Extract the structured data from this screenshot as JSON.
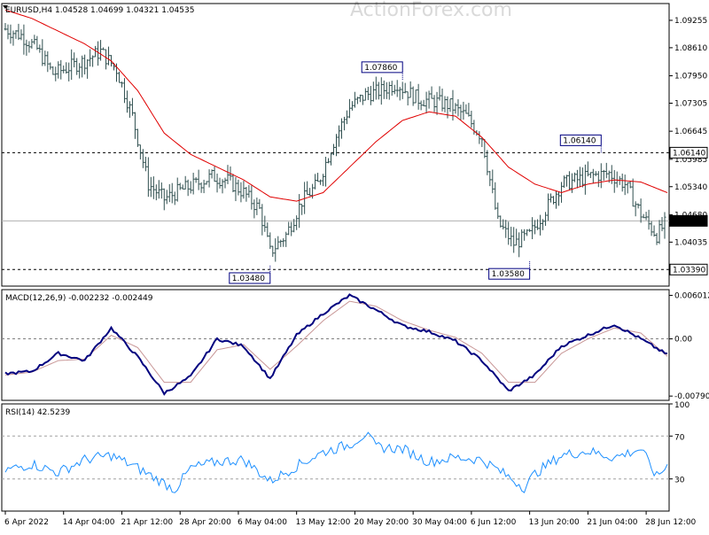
{
  "watermark": "ActionForex.com",
  "chart_data": [
    {
      "type": "bar",
      "title": "EURUSD,H4  1.04528 1.04699 1.04321 1.04535",
      "ylim": [
        1.03,
        1.0965
      ],
      "y_ticks": [
        "1.09255",
        "1.08610",
        "1.07950",
        "1.07305",
        "1.06645",
        "1.05985",
        "1.05340",
        "1.04680",
        "1.04035"
      ],
      "y_tick_values": [
        1.09255,
        1.0861,
        1.0795,
        1.07305,
        1.06645,
        1.05985,
        1.0534,
        1.0468,
        1.04035
      ],
      "x_tick_labels": [
        "6 Apr 2022",
        "14 Apr 04:00",
        "21 Apr 12:00",
        "28 Apr 20:00",
        "6 May 04:00",
        "13 May 12:00",
        "20 May 20:00",
        "30 May 04:00",
        "6 Jun 12:00",
        "13 Jun 20:00",
        "21 Jun 04:00",
        "28 Jun 12:00"
      ],
      "x_tick_index": [
        0,
        22,
        44,
        66,
        88,
        110,
        132,
        154,
        176,
        198,
        220,
        242
      ],
      "bar_count": 250,
      "horizontal_levels": [
        {
          "value": 1.0614,
          "label": "1.06140",
          "style": "dashed"
        },
        {
          "value": 1.0339,
          "label": "1.03390",
          "style": "dashed"
        },
        {
          "value": 1.04535,
          "label": "1.04535",
          "style": "solid"
        }
      ],
      "annotations": [
        {
          "label": "1.03480",
          "bar": 100,
          "value": 1.0348,
          "position": "below"
        },
        {
          "label": "1.07860",
          "bar": 150,
          "value": 1.0786,
          "position": "above"
        },
        {
          "label": "1.03580",
          "bar": 198,
          "value": 1.0358,
          "position": "below"
        },
        {
          "label": "1.06140",
          "bar": 225,
          "value": 1.0614,
          "position": "above"
        }
      ],
      "price_anchors": {
        "x": [
          0,
          6,
          12,
          18,
          24,
          30,
          36,
          42,
          48,
          54,
          60,
          66,
          72,
          78,
          84,
          90,
          96,
          100,
          106,
          112,
          118,
          124,
          130,
          136,
          142,
          148,
          150,
          156,
          162,
          168,
          174,
          180,
          186,
          192,
          198,
          204,
          210,
          216,
          222,
          228,
          234,
          240,
          246,
          250
        ],
        "close": [
          1.0905,
          1.089,
          1.0858,
          1.08,
          1.0815,
          1.083,
          1.0852,
          1.081,
          1.07,
          1.054,
          1.0505,
          1.0525,
          1.054,
          1.0558,
          1.0548,
          1.052,
          1.048,
          1.038,
          1.042,
          1.05,
          1.054,
          1.064,
          1.072,
          1.075,
          1.076,
          1.0778,
          1.0765,
          1.074,
          1.0735,
          1.0725,
          1.07,
          1.065,
          1.045,
          1.04,
          1.042,
          1.048,
          1.054,
          1.055,
          1.056,
          1.0565,
          1.054,
          1.047,
          1.042,
          1.04535
        ]
      },
      "ma": {
        "x": [
          0,
          10,
          20,
          30,
          40,
          50,
          60,
          70,
          80,
          90,
          100,
          110,
          120,
          130,
          140,
          150,
          160,
          170,
          180,
          190,
          200,
          210,
          220,
          230,
          240,
          250
        ],
        "y": [
          1.095,
          1.093,
          1.09,
          1.087,
          1.083,
          1.076,
          1.066,
          1.061,
          1.058,
          1.055,
          1.051,
          1.05,
          1.052,
          1.058,
          1.064,
          1.069,
          1.071,
          1.07,
          1.065,
          1.058,
          1.054,
          1.052,
          1.054,
          1.055,
          1.0545,
          1.052
        ]
      },
      "colors": {
        "bars": "#2f4f4f",
        "ma": "#e00000",
        "level": "#000000",
        "current": "#b0b0b0"
      }
    },
    {
      "type": "line",
      "title": "MACD(12,26,9) -0.002232 -0.002449",
      "ylim": [
        -0.0085,
        0.0068
      ],
      "y_ticks": [
        "0.006012",
        "0.00",
        "-0.007907"
      ],
      "y_tick_values": [
        0.006012,
        0.0,
        -0.007907
      ],
      "series": [
        {
          "name": "MACD",
          "color": "#00007f",
          "x": [
            0,
            10,
            20,
            30,
            40,
            50,
            60,
            70,
            80,
            90,
            100,
            110,
            120,
            130,
            140,
            150,
            160,
            170,
            180,
            190,
            200,
            210,
            220,
            230,
            240,
            250
          ],
          "y": [
            -0.0048,
            -0.0045,
            -0.002,
            -0.003,
            0.0015,
            -0.0025,
            -0.0075,
            -0.0052,
            0.0,
            -0.001,
            -0.0055,
            0.0005,
            0.0035,
            0.006,
            0.004,
            0.0018,
            0.001,
            -0.0003,
            -0.003,
            -0.0072,
            -0.005,
            -0.001,
            0.0005,
            0.002,
            0.0,
            -0.0022
          ]
        },
        {
          "name": "Signal",
          "color": "#c89696",
          "x": [
            0,
            10,
            20,
            30,
            40,
            50,
            60,
            70,
            80,
            90,
            100,
            110,
            120,
            130,
            140,
            150,
            160,
            170,
            180,
            190,
            200,
            210,
            220,
            230,
            240,
            250
          ],
          "y": [
            -0.005,
            -0.0046,
            -0.003,
            -0.0028,
            0.0005,
            -0.0012,
            -0.006,
            -0.006,
            -0.0015,
            -0.0008,
            -0.0042,
            -0.001,
            0.0025,
            0.0052,
            0.0045,
            0.0025,
            0.0012,
            0.0002,
            -0.002,
            -0.006,
            -0.006,
            -0.002,
            0.0,
            0.0015,
            0.0008,
            -0.0024
          ]
        }
      ]
    },
    {
      "type": "line",
      "title": "RSI(14) 42.5239",
      "ylim": [
        0,
        100
      ],
      "y_ticks": [
        "100",
        "70",
        "30",
        "0"
      ],
      "y_tick_values": [
        100,
        70,
        30,
        0
      ],
      "levels": [
        70,
        30
      ],
      "series": [
        {
          "name": "RSI",
          "color": "#1e90ff",
          "x": [
            0,
            10,
            20,
            30,
            40,
            50,
            60,
            64,
            70,
            80,
            90,
            100,
            110,
            120,
            130,
            136,
            140,
            150,
            160,
            170,
            180,
            190,
            196,
            200,
            210,
            220,
            230,
            240,
            246,
            250
          ],
          "y": [
            38,
            44,
            36,
            48,
            52,
            40,
            26,
            20,
            40,
            46,
            48,
            28,
            42,
            55,
            62,
            72,
            60,
            58,
            46,
            50,
            48,
            32,
            22,
            35,
            52,
            56,
            50,
            58,
            32,
            42.5
          ]
        }
      ]
    }
  ]
}
